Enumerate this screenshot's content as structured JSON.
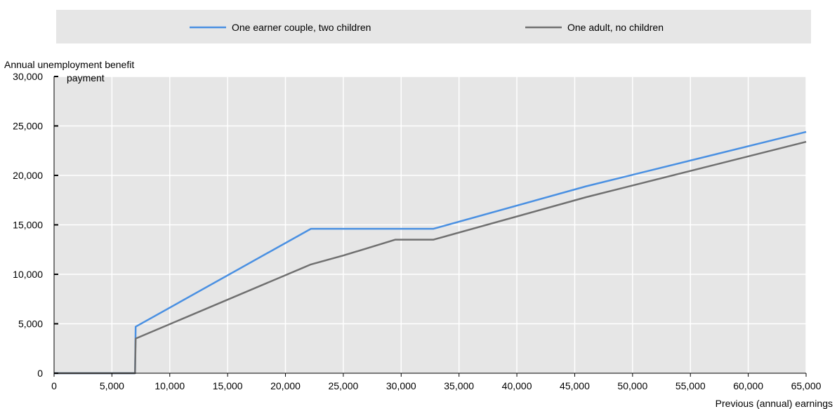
{
  "chart_data": {
    "type": "line",
    "title": "",
    "xlabel": "Previous (annual) earnings",
    "ylabel_line1": "Annual unemployment benefit",
    "ylabel_line2": "payment",
    "xlim": [
      0,
      65000
    ],
    "ylim": [
      0,
      30000
    ],
    "x_ticks": [
      0,
      5000,
      10000,
      15000,
      20000,
      25000,
      30000,
      35000,
      40000,
      45000,
      50000,
      55000,
      60000,
      65000
    ],
    "x_tick_labels": [
      "0",
      "5,000",
      "10,000",
      "15,000",
      "20,000",
      "25,000",
      "30,000",
      "35,000",
      "40,000",
      "45,000",
      "50,000",
      "55,000",
      "60,000",
      "65,000"
    ],
    "y_ticks": [
      0,
      5000,
      10000,
      15000,
      20000,
      25000,
      30000
    ],
    "y_tick_labels": [
      "0",
      "5,000",
      "10,000",
      "15,000",
      "20,000",
      "25,000",
      "30,000"
    ],
    "grid": true,
    "legend_position": "top",
    "series": [
      {
        "name": "One earner couple, two children",
        "color": "#4a90e2",
        "points": [
          [
            0,
            0
          ],
          [
            7000,
            0
          ],
          [
            7050,
            4700
          ],
          [
            22200,
            14600
          ],
          [
            32800,
            14600
          ],
          [
            46000,
            18900
          ],
          [
            65000,
            24400
          ]
        ]
      },
      {
        "name": "One adult, no children",
        "color": "#707070",
        "points": [
          [
            0,
            0
          ],
          [
            7000,
            0
          ],
          [
            7050,
            3500
          ],
          [
            22200,
            11000
          ],
          [
            25000,
            11900
          ],
          [
            29500,
            13500
          ],
          [
            32800,
            13500
          ],
          [
            46000,
            17800
          ],
          [
            65000,
            23400
          ]
        ]
      }
    ]
  }
}
